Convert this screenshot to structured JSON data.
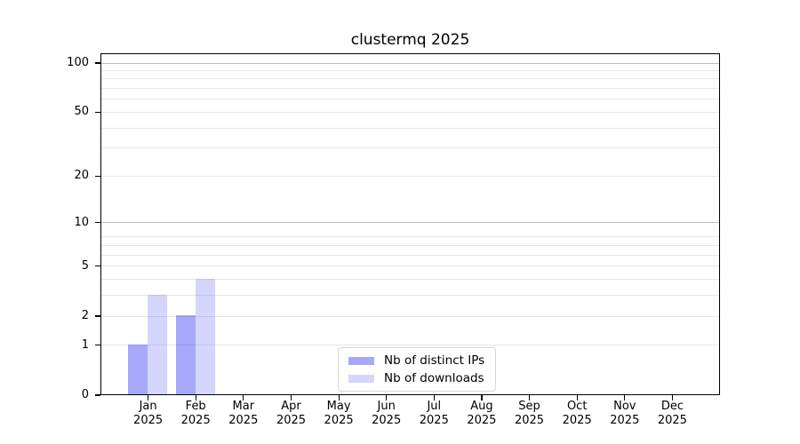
{
  "title": "clustermq 2025",
  "chart_data": {
    "type": "bar",
    "title": "clustermq 2025",
    "categories": [
      "Jan",
      "Feb",
      "Mar",
      "Apr",
      "May",
      "Jun",
      "Jul",
      "Aug",
      "Sep",
      "Oct",
      "Nov",
      "Dec"
    ],
    "year": "2025",
    "series": [
      {
        "name": "Nb of distinct IPs",
        "color": "#0000ee",
        "alpha": 0.34,
        "effective_hex": "#a9a9f5",
        "values": [
          1,
          2,
          0,
          0,
          0,
          0,
          0,
          0,
          0,
          0,
          0,
          0
        ]
      },
      {
        "name": "Nb of downloads",
        "color": "#0000ee",
        "alpha": 0.16,
        "effective_hex": "#d7d7f7",
        "values": [
          3,
          4,
          0,
          0,
          0,
          0,
          0,
          0,
          0,
          0,
          0,
          0
        ]
      }
    ],
    "xlabel": "",
    "ylabel": "",
    "y_axis": {
      "scale": "log10(value+1)",
      "ticks": [
        100,
        50,
        20,
        10,
        5,
        2,
        1,
        0
      ],
      "minor_gridlines": [
        1,
        2,
        3,
        4,
        5,
        6,
        7,
        8,
        20,
        30,
        40,
        50,
        60,
        70,
        80,
        90
      ],
      "major_gridlines": [
        10,
        100
      ],
      "ylim": [
        0,
        112
      ]
    },
    "grid": true,
    "legend_position": "bottom-center"
  },
  "colors": {
    "background": "#ffffff",
    "spine": "#000000",
    "minor_grid": "#e7e7e7",
    "major_grid": "#bdbdbd",
    "legend_border": "#d8d8d8"
  }
}
